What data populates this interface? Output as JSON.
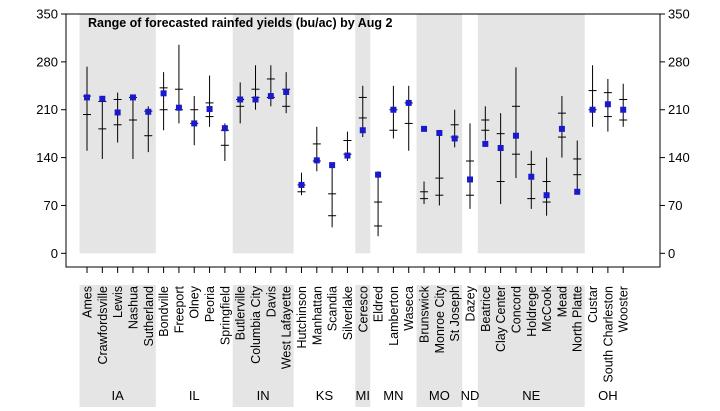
{
  "chart_data": {
    "type": "range",
    "title": "Range of forecasted rainfed yields (bu/ac) by Aug 2",
    "ylabel": "",
    "xlabel": "",
    "ylim": [
      -20,
      350
    ],
    "yticks": [
      0,
      70,
      140,
      210,
      280,
      350
    ],
    "colors": {
      "marker": "#1a1acc",
      "band": "#e5e5e5",
      "line": "#000000"
    },
    "sites": [
      {
        "name": "Ames",
        "state": "IA",
        "low": 150,
        "high": 273,
        "q1": 203,
        "q3": 230,
        "median": 230,
        "point": 228
      },
      {
        "name": "Crawfordsville",
        "state": "IA",
        "low": 138,
        "high": 225,
        "q1": 182,
        "q3": 222,
        "median": 182,
        "point": 226
      },
      {
        "name": "Lewis",
        "state": "IA",
        "low": 162,
        "high": 235,
        "q1": 188,
        "q3": 225,
        "median": 188,
        "point": 206
      },
      {
        "name": "Nashua",
        "state": "IA",
        "low": 138,
        "high": 230,
        "q1": 195,
        "q3": 228,
        "median": 195,
        "point": 228
      },
      {
        "name": "Sutherland",
        "state": "IA",
        "low": 148,
        "high": 215,
        "q1": 172,
        "q3": 208,
        "median": 172,
        "point": 207
      },
      {
        "name": "Bondville",
        "state": "IL",
        "low": 180,
        "high": 265,
        "q1": 210,
        "q3": 242,
        "median": 242,
        "point": 234
      },
      {
        "name": "Freeport",
        "state": "IL",
        "low": 190,
        "high": 305,
        "q1": 210,
        "q3": 240,
        "median": 240,
        "point": 213
      },
      {
        "name": "Olney",
        "state": "IL",
        "low": 158,
        "high": 230,
        "q1": 190,
        "q3": 210,
        "median": 210,
        "point": 190
      },
      {
        "name": "Peoria",
        "state": "IL",
        "low": 185,
        "high": 260,
        "q1": 200,
        "q3": 220,
        "median": 220,
        "point": 211
      },
      {
        "name": "Springfield",
        "state": "IL",
        "low": 135,
        "high": 190,
        "q1": 158,
        "q3": 180,
        "median": 158,
        "point": 183
      },
      {
        "name": "Butlerville",
        "state": "IN",
        "low": 190,
        "high": 250,
        "q1": 215,
        "q3": 225,
        "median": 215,
        "point": 225
      },
      {
        "name": "Columbia City",
        "state": "IN",
        "low": 210,
        "high": 275,
        "q1": 228,
        "q3": 240,
        "median": 240,
        "point": 225
      },
      {
        "name": "Davis",
        "state": "IN",
        "low": 215,
        "high": 275,
        "q1": 228,
        "q3": 255,
        "median": 255,
        "point": 230
      },
      {
        "name": "West Lafayette",
        "state": "IN",
        "low": 205,
        "high": 265,
        "q1": 215,
        "q3": 240,
        "median": 240,
        "point": 236
      },
      {
        "name": "Hutchinson",
        "state": "KS",
        "low": 85,
        "high": 118,
        "q1": 90,
        "q3": 100,
        "median": 100,
        "point": 100
      },
      {
        "name": "Manhattan",
        "state": "KS",
        "low": 120,
        "high": 185,
        "q1": 135,
        "q3": 160,
        "median": 160,
        "point": 136
      },
      {
        "name": "Scandia",
        "state": "KS",
        "low": 38,
        "high": 125,
        "q1": 55,
        "q3": 87,
        "median": 55,
        "point": 129
      },
      {
        "name": "Silverlake",
        "state": "KS",
        "low": 135,
        "high": 178,
        "q1": 145,
        "q3": 165,
        "median": 165,
        "point": 143
      },
      {
        "name": "Ceresco",
        "state": "MI",
        "low": 170,
        "high": 245,
        "q1": 198,
        "q3": 228,
        "median": 228,
        "point": 180
      },
      {
        "name": "Eldred",
        "state": "MN",
        "low": 25,
        "high": 120,
        "q1": 40,
        "q3": 75,
        "median": 40,
        "point": 115
      },
      {
        "name": "Lamberton",
        "state": "MN",
        "low": 168,
        "high": 245,
        "q1": 180,
        "q3": 210,
        "median": 180,
        "point": 210
      },
      {
        "name": "Waseca",
        "state": "MN",
        "low": 150,
        "high": 245,
        "q1": 190,
        "q3": 220,
        "median": 190,
        "point": 220
      },
      {
        "name": "Brunswick",
        "state": "MO",
        "low": 72,
        "high": 105,
        "q1": 80,
        "q3": 90,
        "median": 90,
        "point": 182
      },
      {
        "name": "Monroe City",
        "state": "MO",
        "low": 70,
        "high": 180,
        "q1": 85,
        "q3": 110,
        "median": 110,
        "point": 176
      },
      {
        "name": "St Joseph",
        "state": "MO",
        "low": 155,
        "high": 210,
        "q1": 170,
        "q3": 188,
        "median": 188,
        "point": 168
      },
      {
        "name": "Dazey",
        "state": "ND",
        "low": 65,
        "high": 190,
        "q1": 85,
        "q3": 135,
        "median": 85,
        "point": 108
      },
      {
        "name": "Beatrice",
        "state": "NE",
        "low": 165,
        "high": 215,
        "q1": 180,
        "q3": 195,
        "median": 195,
        "point": 160
      },
      {
        "name": "Clay Center",
        "state": "NE",
        "low": 72,
        "high": 205,
        "q1": 105,
        "q3": 175,
        "median": 105,
        "point": 154
      },
      {
        "name": "Concord",
        "state": "NE",
        "low": 110,
        "high": 272,
        "q1": 145,
        "q3": 215,
        "median": 145,
        "point": 172
      },
      {
        "name": "Holdrege",
        "state": "NE",
        "low": 65,
        "high": 150,
        "q1": 80,
        "q3": 130,
        "median": 130,
        "point": 112
      },
      {
        "name": "McCook",
        "state": "NE",
        "low": 55,
        "high": 140,
        "q1": 75,
        "q3": 105,
        "median": 75,
        "point": 85
      },
      {
        "name": "Mead",
        "state": "NE",
        "low": 140,
        "high": 230,
        "q1": 170,
        "q3": 205,
        "median": 170,
        "point": 182
      },
      {
        "name": "North Platte",
        "state": "NE",
        "low": 90,
        "high": 165,
        "q1": 115,
        "q3": 138,
        "median": 138,
        "point": 90
      },
      {
        "name": "Custar",
        "state": "OH",
        "low": 185,
        "high": 275,
        "q1": 210,
        "q3": 238,
        "median": 238,
        "point": 210
      },
      {
        "name": "South Charleston",
        "state": "OH",
        "low": 178,
        "high": 255,
        "q1": 200,
        "q3": 235,
        "median": 235,
        "point": 218
      },
      {
        "name": "Wooster",
        "state": "OH",
        "low": 185,
        "high": 248,
        "q1": 195,
        "q3": 225,
        "median": 225,
        "point": 210
      }
    ],
    "states": [
      {
        "name": "IA",
        "start": 0,
        "end": 4,
        "shaded": true
      },
      {
        "name": "IL",
        "start": 5,
        "end": 9,
        "shaded": false
      },
      {
        "name": "IN",
        "start": 10,
        "end": 13,
        "shaded": true
      },
      {
        "name": "KS",
        "start": 14,
        "end": 17,
        "shaded": false
      },
      {
        "name": "MI",
        "start": 18,
        "end": 18,
        "shaded": true
      },
      {
        "name": "MN",
        "start": 19,
        "end": 21,
        "shaded": false
      },
      {
        "name": "MO",
        "start": 22,
        "end": 24,
        "shaded": true
      },
      {
        "name": "ND",
        "start": 25,
        "end": 25,
        "shaded": false
      },
      {
        "name": "NE",
        "start": 26,
        "end": 32,
        "shaded": true
      },
      {
        "name": "OH",
        "start": 33,
        "end": 35,
        "shaded": false
      }
    ]
  }
}
